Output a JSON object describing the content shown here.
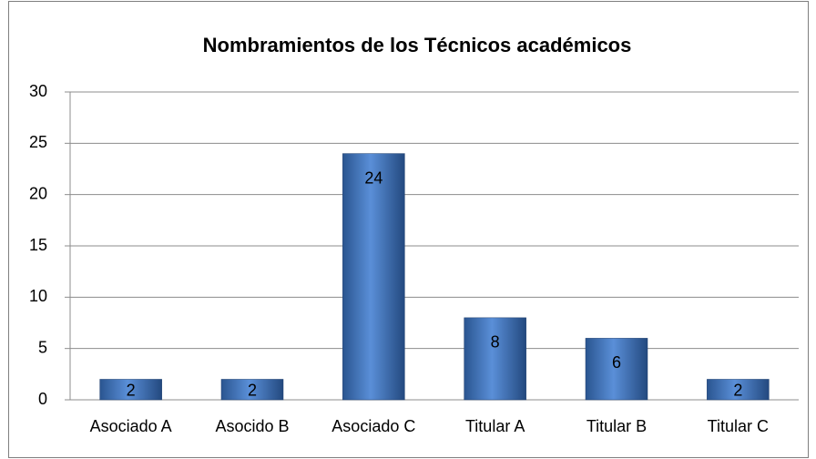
{
  "chart_data": {
    "type": "bar",
    "title": "Nombramientos de los Técnicos académicos",
    "categories": [
      "Asociado A",
      "Asocido B",
      "Asociado C",
      "Titular A",
      "Titular B",
      "Titular C"
    ],
    "values": [
      2,
      2,
      24,
      8,
      6,
      2
    ],
    "color": "#3b6fba",
    "ylim": [
      0,
      30
    ],
    "yticks": [
      0,
      5,
      10,
      15,
      20,
      25,
      30
    ],
    "grid": true
  }
}
